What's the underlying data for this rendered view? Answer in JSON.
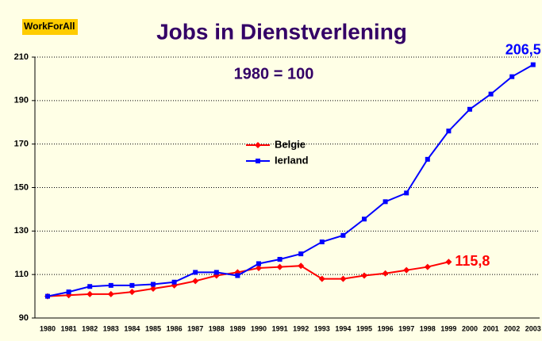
{
  "chart_data": {
    "type": "line",
    "title": "Jobs in Dienstverlening",
    "logo": "WorkForAll",
    "annotation": "1980 = 100",
    "categories": [
      "1980",
      "1981",
      "1982",
      "1983",
      "1984",
      "1985",
      "1986",
      "1987",
      "1988",
      "1989",
      "1990",
      "1991",
      "1992",
      "1993",
      "1994",
      "1995",
      "1996",
      "1997",
      "1998",
      "1999",
      "2000",
      "2001",
      "2002",
      "2003"
    ],
    "series": [
      {
        "name": "Belgie",
        "color": "#ff0000",
        "marker": "diamond",
        "values": [
          100,
          100.5,
          101,
          101,
          102,
          103.5,
          105,
          107,
          109.5,
          111,
          113,
          113.5,
          114,
          108,
          108,
          109.5,
          110.5,
          112,
          113.5,
          115.8,
          null,
          null,
          null,
          null
        ],
        "value_labels": [
          null,
          null,
          null,
          null,
          null,
          null,
          null,
          null,
          null,
          null,
          null,
          null,
          null,
          null,
          null,
          null,
          null,
          null,
          null,
          "115,8",
          null,
          null,
          null,
          null
        ]
      },
      {
        "name": "Ierland",
        "color": "#0000ff",
        "marker": "square",
        "values": [
          100,
          102,
          104.5,
          105,
          105,
          105.5,
          106.5,
          111,
          111,
          109.5,
          115,
          117,
          119.5,
          125,
          128,
          135.5,
          143.5,
          147.5,
          163,
          176,
          186,
          193,
          201,
          206.5
        ],
        "value_labels": [
          null,
          null,
          null,
          null,
          null,
          null,
          null,
          null,
          null,
          null,
          null,
          null,
          null,
          null,
          null,
          null,
          null,
          null,
          null,
          null,
          null,
          null,
          null,
          "206,5"
        ]
      }
    ],
    "ylim": [
      90,
      210
    ],
    "yticks": [
      90,
      110,
      130,
      150,
      170,
      190,
      210
    ],
    "grid": true,
    "legend": "center"
  }
}
